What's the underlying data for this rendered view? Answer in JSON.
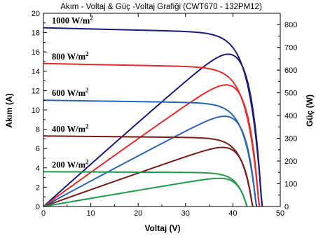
{
  "chart_data": {
    "type": "line",
    "title": "Akım - Voltaj & Güç -Voltaj Grafiği (CWT670 - 132PM12)",
    "xlabel": "Voltaj (V)",
    "ylabel": "Akım (A)",
    "y2label": "Güç (W)",
    "xlim": [
      0,
      50
    ],
    "ylim": [
      0,
      20
    ],
    "y2lim": [
      0,
      850
    ],
    "xticks": [
      "0",
      "10",
      "20",
      "30",
      "40",
      "50"
    ],
    "yticks": [
      "0",
      "2",
      "4",
      "6",
      "8",
      "10",
      "12",
      "14",
      "16",
      "18",
      "20"
    ],
    "y2ticks": [
      "0",
      "100",
      "200",
      "300",
      "400",
      "500",
      "600",
      "700",
      "800"
    ],
    "grid": false,
    "series": [
      {
        "name": "1000 W/m",
        "name_sup": "2",
        "color": "#1a1a7a",
        "power_color": "#1a1a7a",
        "isc": 18.5,
        "voc": 46.2,
        "vmp": 38.4,
        "pmax": 670
      },
      {
        "name": "800 W/m",
        "name_sup": "2",
        "color": "#e8292a",
        "power_color": "#e8292a",
        "isc": 14.8,
        "voc": 45.6,
        "vmp": 38.0,
        "pmax": 535
      },
      {
        "name": "600 W/m",
        "name_sup": "2",
        "color": "#2a64b8",
        "power_color": "#2a64b8",
        "isc": 11.0,
        "voc": 45.0,
        "vmp": 37.8,
        "pmax": 397
      },
      {
        "name": "400 W/m",
        "name_sup": "2",
        "color": "#7a1a1a",
        "power_color": "#7a1a1a",
        "isc": 7.3,
        "voc": 44.2,
        "vmp": 37.5,
        "pmax": 260
      },
      {
        "name": "200 W/m",
        "name_sup": "2",
        "color": "#1f9a4a",
        "power_color": "#1f9a4a",
        "isc": 3.6,
        "voc": 43.0,
        "vmp": 37.0,
        "pmax": 124
      }
    ]
  }
}
